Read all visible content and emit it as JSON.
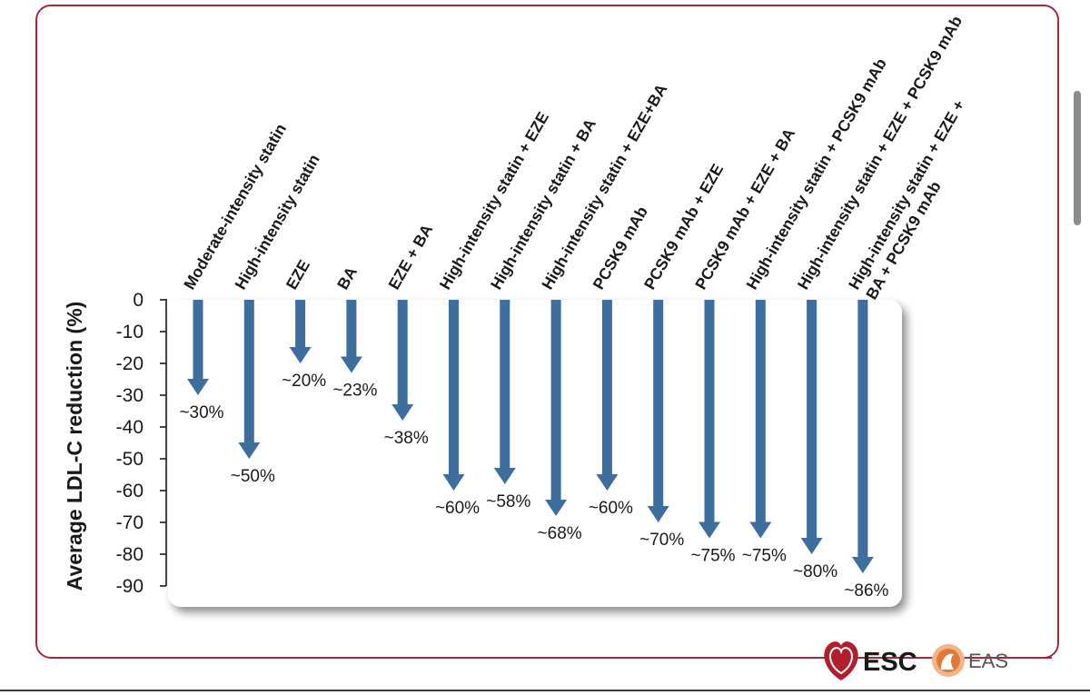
{
  "colors": {
    "frame": "#a3283e",
    "arrow": "#3d6e9e",
    "text": "#1a1a1a",
    "panel": "#ffffff",
    "esc_red": "#b01f2b",
    "eas_orange": "#e07a3c",
    "eas_text": "#555555"
  },
  "logos": {
    "esc": "ESC",
    "eas": "EAS"
  },
  "chart_data": {
    "type": "bar",
    "orientation": "downward arrows",
    "title": "",
    "xlabel": "",
    "ylabel": "Average LDL-C reduction (%)",
    "ylim": [
      -90,
      0
    ],
    "yticks": [
      "0",
      "-10",
      "-20",
      "-30",
      "-40",
      "-50",
      "-60",
      "-70",
      "-80",
      "-90"
    ],
    "grid": false,
    "categories": [
      [
        "Moderate-intensity statin"
      ],
      [
        "High-intensity statin"
      ],
      [
        "EZE"
      ],
      [
        "BA"
      ],
      [
        "EZE + BA"
      ],
      [
        "High-intensity statin + EZE"
      ],
      [
        "High-intensity statin + BA"
      ],
      [
        "High-intensity statin + EZE+BA"
      ],
      [
        "PCSK9 mAb"
      ],
      [
        "PCSK9 mAb + EZE"
      ],
      [
        "PCSK9 mAb + EZE + BA"
      ],
      [
        "High-intensity statin + PCSK9 mAb"
      ],
      [
        "High-intensity statin + EZE + PCSK9 mAb"
      ],
      [
        "High-intensity statin + EZE +",
        "BA + PCSK9 mAb"
      ]
    ],
    "values": [
      -30,
      -50,
      -20,
      -23,
      -38,
      -60,
      -58,
      -68,
      -60,
      -70,
      -75,
      -75,
      -80,
      -86
    ],
    "data_labels": [
      "~30%",
      "~50%",
      "~20%",
      "~23%",
      "~38%",
      "~60%",
      "~58%",
      "~68%",
      "~60%",
      "~70%",
      "~75%",
      "~75%",
      "~80%",
      "~86%"
    ]
  }
}
